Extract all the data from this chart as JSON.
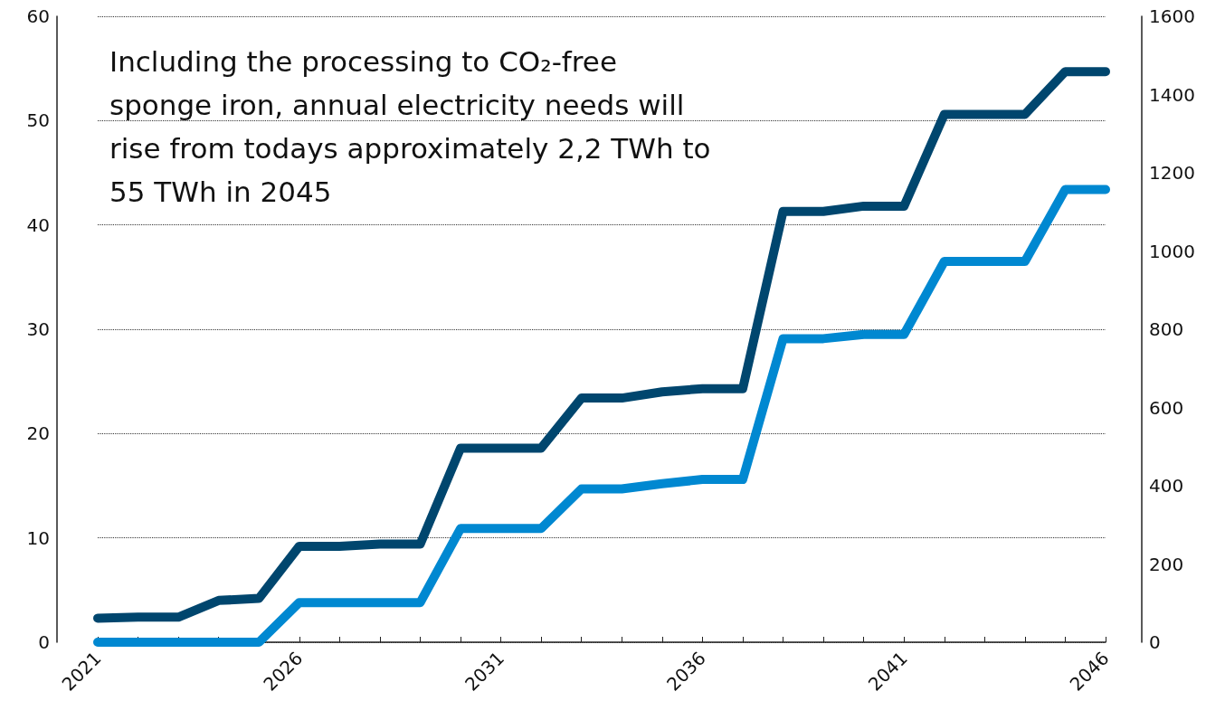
{
  "chart_data": {
    "type": "line",
    "categories": [
      "2021",
      null,
      null,
      null,
      null,
      "2026",
      null,
      null,
      null,
      null,
      "2031",
      null,
      null,
      null,
      null,
      "2036",
      null,
      null,
      null,
      null,
      "2041",
      null,
      null,
      null,
      null,
      "2046"
    ],
    "series": [
      {
        "color": "#00466e",
        "values": [
          2.3,
          2.4,
          2.4,
          4.0,
          4.2,
          9.2,
          9.2,
          9.4,
          9.4,
          18.6,
          18.6,
          18.6,
          23.4,
          23.4,
          24.0,
          24.3,
          24.3,
          41.3,
          41.3,
          41.8,
          41.8,
          50.6,
          50.6,
          50.6,
          54.7,
          54.7
        ]
      },
      {
        "color": "#0088d1",
        "values": [
          0,
          0,
          0,
          0,
          0,
          3.8,
          3.8,
          3.8,
          3.8,
          10.9,
          10.9,
          10.9,
          14.7,
          14.7,
          15.2,
          15.6,
          15.6,
          29.1,
          29.1,
          29.5,
          29.5,
          36.5,
          36.5,
          36.5,
          43.4,
          43.4
        ]
      }
    ],
    "ylim": [
      0,
      60
    ],
    "yticks": [
      0,
      10,
      20,
      30,
      40,
      50,
      60
    ],
    "y2lim": [
      0,
      1600
    ],
    "y2ticks": [
      0,
      200,
      400,
      600,
      800,
      1000,
      1200,
      1400,
      1600
    ],
    "grid": "y",
    "marker": "none",
    "line_style": "solid",
    "annotations": [
      "Including the processing to CO₂-free sponge iron, annual electricity needs will rise from todays approximately 2,2 TWh to 55 TWh in 2045"
    ]
  }
}
